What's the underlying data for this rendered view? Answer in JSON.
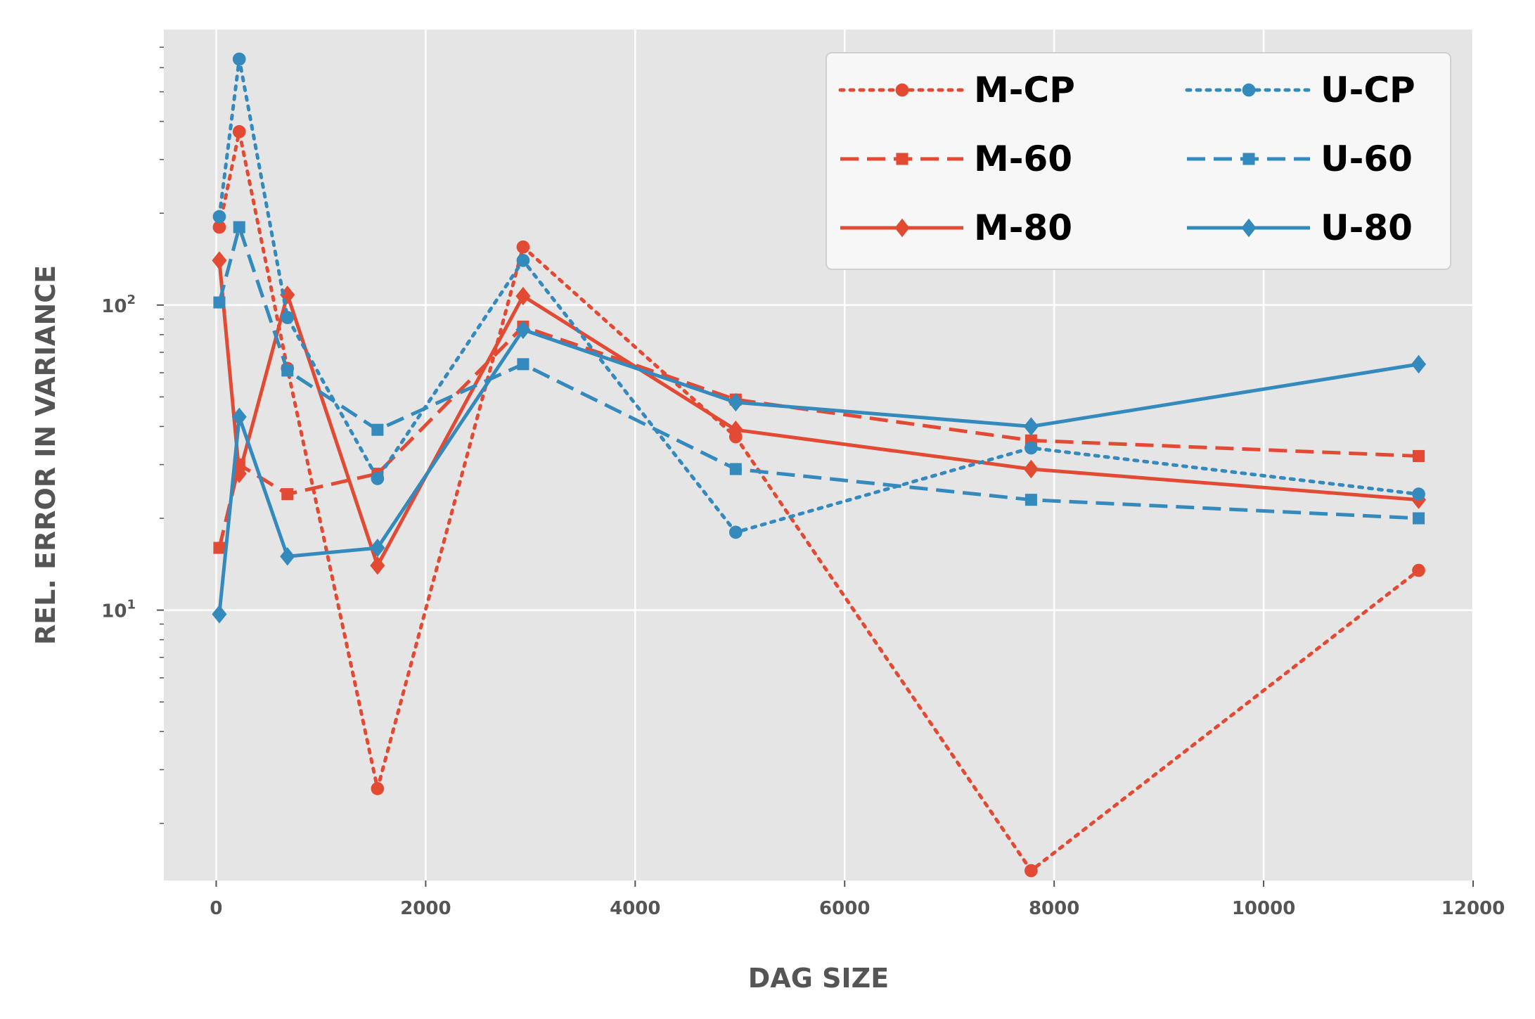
{
  "chart_data": {
    "type": "line",
    "xlabel": "DAG SIZE",
    "ylabel": "REL. ERROR IN VARIANCE",
    "xlim": [
      -500,
      12000
    ],
    "ylim": [
      1.3,
      800
    ],
    "y_scale": "log",
    "x_ticks": [
      0,
      2000,
      4000,
      6000,
      8000,
      10000,
      12000
    ],
    "x_tick_labels": [
      "0",
      "2000",
      "4000",
      "6000",
      "8000",
      "10000",
      "12000"
    ],
    "y_ticks": [
      10,
      100
    ],
    "y_tick_labels": [
      {
        "base": "10",
        "exp": "1"
      },
      {
        "base": "10",
        "exp": "2"
      }
    ],
    "grid": true,
    "legend": {
      "placement": "top-right",
      "columns": 2
    },
    "x": [
      30,
      220,
      680,
      1540,
      2930,
      4960,
      7780,
      11480
    ],
    "series": [
      {
        "name": "M-CP",
        "color": "#E24A33",
        "linestyle": "dotted",
        "marker": "circle",
        "values": [
          180,
          370,
          62,
          2.6,
          155,
          37,
          1.4,
          13.5
        ]
      },
      {
        "name": "M-60",
        "color": "#E24A33",
        "linestyle": "dashed",
        "marker": "square",
        "values": [
          16,
          30,
          24,
          28,
          85,
          49,
          36,
          32
        ]
      },
      {
        "name": "M-80",
        "color": "#E24A33",
        "linestyle": "solid",
        "marker": "diamond",
        "values": [
          140,
          28,
          108,
          14,
          107,
          39,
          29,
          23
        ]
      },
      {
        "name": "U-CP",
        "color": "#348ABD",
        "linestyle": "dotted",
        "marker": "circle",
        "values": [
          195,
          640,
          91,
          27,
          140,
          18,
          34,
          24
        ]
      },
      {
        "name": "U-60",
        "color": "#348ABD",
        "linestyle": "dashed",
        "marker": "square",
        "values": [
          102,
          180,
          61,
          39,
          64,
          29,
          23,
          20
        ]
      },
      {
        "name": "U-80",
        "color": "#348ABD",
        "linestyle": "solid",
        "marker": "diamond",
        "values": [
          9.7,
          43,
          15,
          16,
          83,
          48,
          40,
          64
        ]
      }
    ]
  }
}
